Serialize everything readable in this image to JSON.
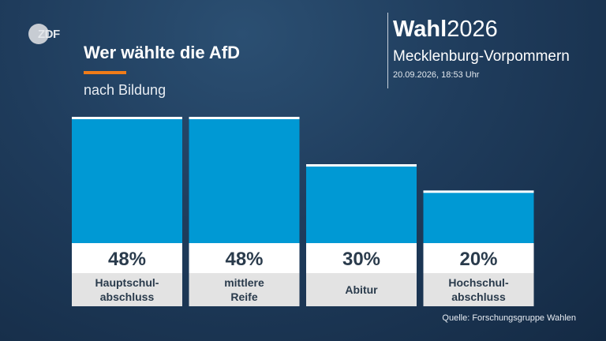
{
  "header": {
    "logo_text": "ZDF",
    "title": "Wer wählte die AfD",
    "subtitle": "nach Bildung",
    "brand_bold": "Wahl",
    "brand_year": "2026",
    "region": "Mecklenburg-Vorpommern",
    "datetime": "20.09.2026, 18:53 Uhr"
  },
  "source": "Quelle: Forschungsgruppe Wahlen",
  "colors": {
    "bar": "#0099d4",
    "bar_top": "#ffffff",
    "value_box": "#ffffff",
    "label_box": "#e3e3e3",
    "accent": "#f07c19"
  },
  "chart_data": {
    "type": "bar",
    "categories": [
      [
        "Hauptschul-",
        "abschluss"
      ],
      [
        "mittlere",
        "Reife"
      ],
      [
        "Abitur"
      ],
      [
        "Hochschul-",
        "abschluss"
      ]
    ],
    "values": [
      48,
      48,
      30,
      20
    ],
    "value_labels": [
      "48%",
      "48%",
      "30%",
      "20%"
    ],
    "title": "Wer wählte die AfD",
    "subtitle": "nach Bildung",
    "unit": "%",
    "ylim": [
      0,
      50
    ],
    "grid": false,
    "legend": "none"
  }
}
